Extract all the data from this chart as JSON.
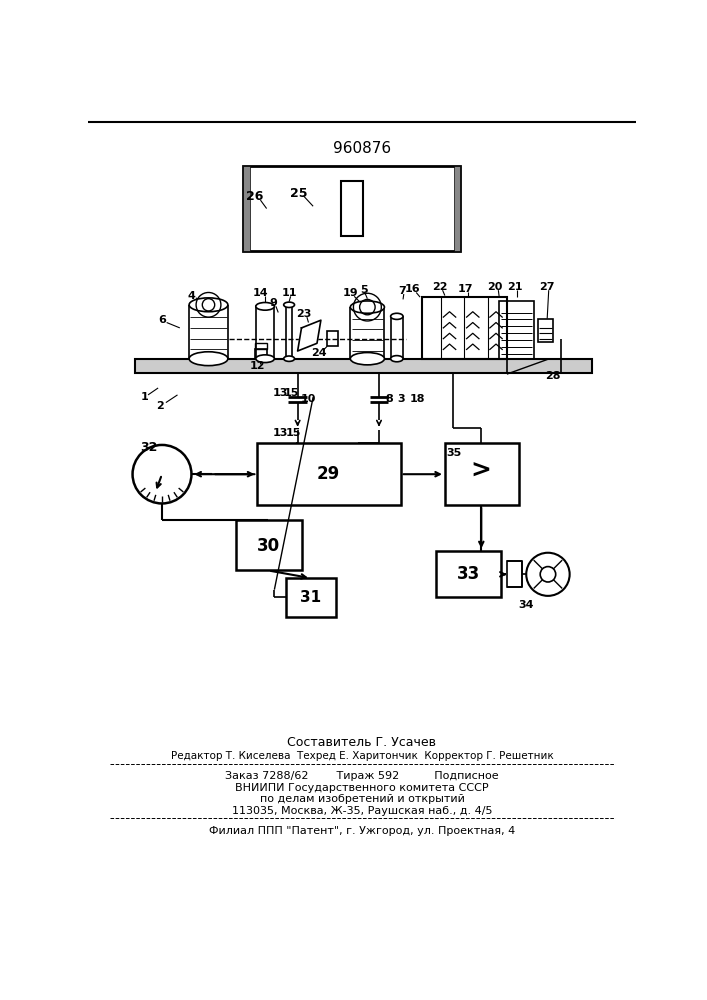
{
  "patent_number": "960876",
  "bg_color": "#ffffff",
  "line_color": "#000000",
  "footer_text_1": "Составитель Г. Усачев",
  "footer_text_2": "Редактор Т. Киселева  Техред Е. Харитончик  Корректор Г. Решетник",
  "footer_text_3": "Заказ 7288/62        Тираж 592          Подписное",
  "footer_text_4": "ВНИИПИ Государственного комитета СССР",
  "footer_text_5": "по делам изобретений и открытий",
  "footer_text_6": "113035, Москва, Ж-35, Раушская наб., д. 4/5",
  "footer_text_7": "Филиал ППП \"Патент\", г. Ужгород, ул. Проектная, 4"
}
